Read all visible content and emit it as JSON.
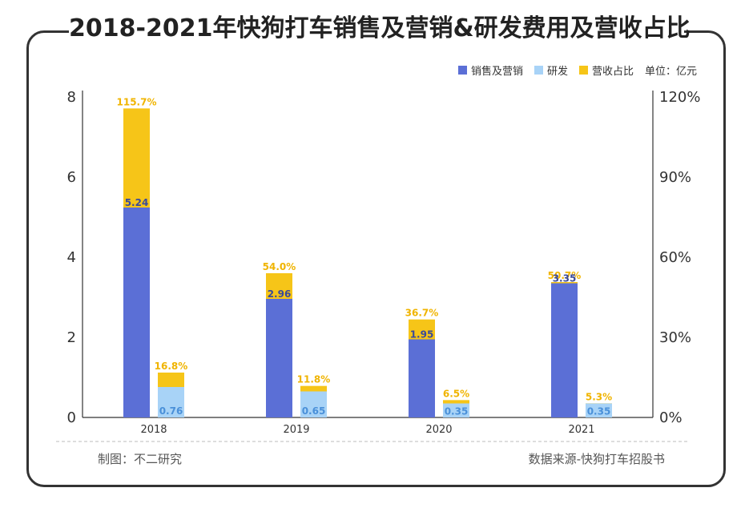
{
  "title": "2018-2021年快狗打车销售及营销&研发费用及营收占比",
  "legend": {
    "items": [
      {
        "label": "销售及营销",
        "color": "#5b6fd6"
      },
      {
        "label": "研发",
        "color": "#a8d3f7"
      },
      {
        "label": "营收占比",
        "color": "#f6c518"
      }
    ],
    "unit": "单位：亿元"
  },
  "footer": {
    "left": "制图：不二研究",
    "right": "数据来源-快狗打车招股书"
  },
  "chart_data": {
    "type": "bar",
    "categories": [
      "2018",
      "2019",
      "2020",
      "2021"
    ],
    "series": [
      {
        "name": "销售及营销",
        "values": [
          5.24,
          2.96,
          1.95,
          3.35
        ],
        "value_labels": [
          "5.24",
          "2.96",
          "1.95",
          "3.35"
        ],
        "color": "#5b6fd6"
      },
      {
        "name": "研发",
        "values": [
          0.76,
          0.65,
          0.35,
          0.35
        ],
        "value_labels": [
          "0.76",
          "0.65",
          "0.35",
          "0.35"
        ],
        "color": "#a8d3f7"
      }
    ],
    "ratio_series": {
      "name": "营收占比",
      "color": "#f6c518",
      "label_color": "#f0b400",
      "sales_ratio": [
        115.7,
        54.0,
        36.7,
        50.7
      ],
      "sales_ratio_labels": [
        "115.7%",
        "54.0%",
        "36.7%",
        "50.7%"
      ],
      "rd_ratio": [
        16.8,
        11.8,
        6.5,
        5.3
      ],
      "rd_ratio_labels": [
        "16.8%",
        "11.8%",
        "6.5%",
        "5.3%"
      ]
    },
    "y_left": {
      "ticks": [
        0,
        2,
        4,
        6,
        8
      ],
      "tick_labels": [
        "0",
        "2",
        "4",
        "6",
        "8"
      ],
      "range": [
        0,
        8
      ]
    },
    "y_right": {
      "ticks": [
        0,
        30,
        60,
        90,
        120
      ],
      "tick_labels": [
        "0%",
        "30%",
        "60%",
        "90%",
        "120%"
      ],
      "range": [
        0,
        120
      ]
    },
    "grid": false,
    "legend_position": "top-right"
  }
}
